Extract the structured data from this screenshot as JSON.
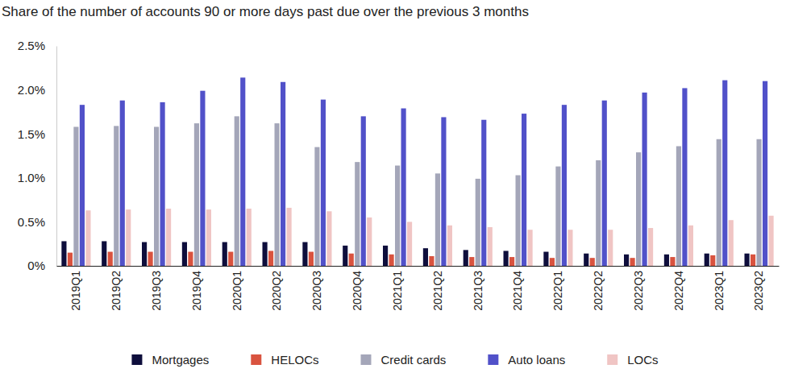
{
  "chart_data": {
    "type": "bar",
    "title": "Share of the number of accounts 90 or more days past due over the previous 3 months",
    "categories": [
      "2019Q1",
      "2019Q2",
      "2019Q3",
      "2019Q4",
      "2020Q1",
      "2020Q2",
      "2020Q3",
      "2020Q4",
      "2021Q1",
      "2021Q2",
      "2021Q3",
      "2021Q4",
      "2022Q1",
      "2022Q2",
      "2022Q3",
      "2022Q4",
      "2023Q1",
      "2023Q2"
    ],
    "series": [
      {
        "name": "Mortgages",
        "color": "#0e0e3c",
        "values": [
          0.28,
          0.28,
          0.27,
          0.27,
          0.27,
          0.27,
          0.27,
          0.23,
          0.23,
          0.2,
          0.18,
          0.17,
          0.16,
          0.14,
          0.13,
          0.13,
          0.14,
          0.14
        ]
      },
      {
        "name": "HELOCs",
        "color": "#d9533f",
        "values": [
          0.15,
          0.16,
          0.16,
          0.16,
          0.16,
          0.17,
          0.16,
          0.14,
          0.13,
          0.11,
          0.1,
          0.1,
          0.09,
          0.09,
          0.09,
          0.1,
          0.12,
          0.13
        ]
      },
      {
        "name": "Credit cards",
        "color": "#a4a6b9",
        "values": [
          1.58,
          1.59,
          1.58,
          1.62,
          1.7,
          1.62,
          1.35,
          1.18,
          1.14,
          1.05,
          0.99,
          1.03,
          1.13,
          1.2,
          1.29,
          1.36,
          1.44,
          1.44
        ]
      },
      {
        "name": "Auto loans",
        "color": "#5151c9",
        "values": [
          1.83,
          1.88,
          1.86,
          1.99,
          2.14,
          2.09,
          1.89,
          1.7,
          1.79,
          1.69,
          1.66,
          1.73,
          1.83,
          1.88,
          1.97,
          2.02,
          2.11,
          2.1
        ]
      },
      {
        "name": "LOCs",
        "color": "#f0c5c4",
        "values": [
          0.63,
          0.64,
          0.65,
          0.64,
          0.65,
          0.66,
          0.62,
          0.55,
          0.5,
          0.46,
          0.44,
          0.41,
          0.41,
          0.41,
          0.43,
          0.46,
          0.52,
          0.57
        ]
      }
    ],
    "ylim": [
      0,
      2.5
    ],
    "yticks": [
      {
        "value": 0,
        "label": "0%"
      },
      {
        "value": 0.5,
        "label": "0.5%"
      },
      {
        "value": 1,
        "label": "1.0%"
      },
      {
        "value": 1.5,
        "label": "1.5%"
      },
      {
        "value": 2,
        "label": "2.0%"
      },
      {
        "value": 2.5,
        "label": "2.5%"
      }
    ],
    "grid": false,
    "legend": "bottom"
  }
}
